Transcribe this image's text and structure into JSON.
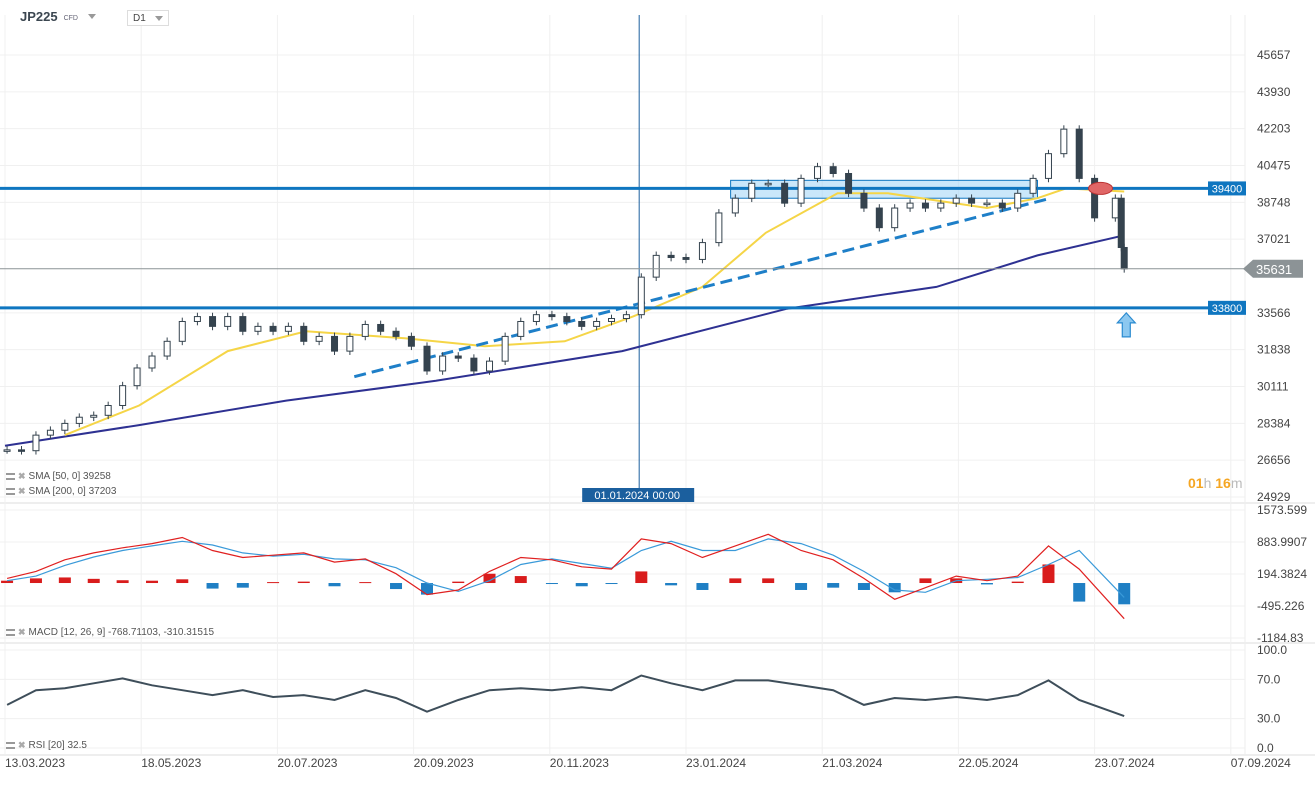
{
  "header": {
    "symbol": "JP225",
    "instrument_type": "CFD",
    "timeframe": "D1"
  },
  "legends": {
    "sma50": "SMA [50, 0] 39258",
    "sma200": "SMA [200, 0] 37203",
    "macd": "MACD [12, 26, 9] -768.71103, -310.31515",
    "rsi": "RSI [20] 32.5"
  },
  "countdown": {
    "hours": "01",
    "h_unit": "h",
    "minutes": "16",
    "m_unit": "m"
  },
  "crosshair_label": "01.01.2024 00:00",
  "colors": {
    "sma50": "#f5d547",
    "sma200": "#2e3192",
    "levels": "#0f76c0",
    "trendline": "#1e7fc8",
    "zone": "#9fd3f5",
    "macd": "#e02020",
    "signal": "#3a9ad9",
    "hist_pos": "#d91c1c",
    "hist_neg": "#1f7fc4",
    "rsi": "#3e4e5a",
    "candle": "#35434e",
    "price_tag": "#8c9396",
    "countdown": "#f5a623"
  },
  "chart_data": [
    {
      "type": "candlestick",
      "price_axis_ticks": [
        45657,
        43930,
        42203,
        40475,
        38748,
        37021,
        33566,
        31838,
        30111,
        28384,
        26656,
        24929
      ],
      "ylim": [
        24929,
        45657
      ],
      "x_ticks": [
        "13.03.2023",
        "18.05.2023",
        "20.07.2023",
        "20.09.2023",
        "20.11.2023",
        "23.01.2024",
        "21.03.2024",
        "22.05.2024",
        "23.07.2024",
        "07.09.2024"
      ],
      "last_price": 35631,
      "levels": [
        {
          "value": 39400,
          "label": "39400"
        },
        {
          "value": 33800,
          "label": "33800"
        }
      ],
      "crosshair_date": "2024-01-01",
      "zone": {
        "from": "2024-02-11",
        "to": "2024-06-27",
        "low": 38940,
        "high": 39780
      },
      "trendline": [
        [
          "2023-08-24",
          30570
        ],
        [
          "2024-07-03",
          38940
        ]
      ],
      "marker_ellipse": [
        "2024-07-25",
        39400
      ],
      "marker_arrow_up": [
        "2024-07-31",
        33000
      ],
      "closes": [
        [
          "2023-03-14",
          27140
        ],
        [
          "2023-03-21",
          27100
        ],
        [
          "2023-03-28",
          27830
        ],
        [
          "2023-04-04",
          28060
        ],
        [
          "2023-04-11",
          28380
        ],
        [
          "2023-04-18",
          28670
        ],
        [
          "2023-04-25",
          28760
        ],
        [
          "2023-05-02",
          29220
        ],
        [
          "2023-05-09",
          30150
        ],
        [
          "2023-05-16",
          30980
        ],
        [
          "2023-05-23",
          31540
        ],
        [
          "2023-05-30",
          32230
        ],
        [
          "2023-06-06",
          33160
        ],
        [
          "2023-06-13",
          33390
        ],
        [
          "2023-06-20",
          32930
        ],
        [
          "2023-06-27",
          33390
        ],
        [
          "2023-07-04",
          32700
        ],
        [
          "2023-07-11",
          32930
        ],
        [
          "2023-07-18",
          32700
        ],
        [
          "2023-07-25",
          32930
        ],
        [
          "2023-08-01",
          32230
        ],
        [
          "2023-08-08",
          32460
        ],
        [
          "2023-08-15",
          31770
        ],
        [
          "2023-08-22",
          32460
        ],
        [
          "2023-08-29",
          33020
        ],
        [
          "2023-09-05",
          32700
        ],
        [
          "2023-09-12",
          32460
        ],
        [
          "2023-09-19",
          32000
        ],
        [
          "2023-09-26",
          30840
        ],
        [
          "2023-10-03",
          31540
        ],
        [
          "2023-10-10",
          31440
        ],
        [
          "2023-10-17",
          30840
        ],
        [
          "2023-10-24",
          31300
        ],
        [
          "2023-10-31",
          32460
        ],
        [
          "2023-11-07",
          33160
        ],
        [
          "2023-11-14",
          33480
        ],
        [
          "2023-11-21",
          33390
        ],
        [
          "2023-11-28",
          33160
        ],
        [
          "2023-12-05",
          32930
        ],
        [
          "2023-12-12",
          33160
        ],
        [
          "2023-12-19",
          33300
        ],
        [
          "2023-12-26",
          33480
        ],
        [
          "2024-01-02",
          35240
        ],
        [
          "2024-01-09",
          36260
        ],
        [
          "2024-01-16",
          36160
        ],
        [
          "2024-01-23",
          36070
        ],
        [
          "2024-01-30",
          36860
        ],
        [
          "2024-02-06",
          38250
        ],
        [
          "2024-02-13",
          38940
        ],
        [
          "2024-02-20",
          39640
        ],
        [
          "2024-02-27",
          39640
        ],
        [
          "2024-03-05",
          38710
        ],
        [
          "2024-03-12",
          39870
        ],
        [
          "2024-03-19",
          40420
        ],
        [
          "2024-03-26",
          40100
        ],
        [
          "2024-04-02",
          39170
        ],
        [
          "2024-04-09",
          38480
        ],
        [
          "2024-04-16",
          37560
        ],
        [
          "2024-04-23",
          38480
        ],
        [
          "2024-04-30",
          38710
        ],
        [
          "2024-05-07",
          38480
        ],
        [
          "2024-05-14",
          38710
        ],
        [
          "2024-05-21",
          38940
        ],
        [
          "2024-05-28",
          38710
        ],
        [
          "2024-06-04",
          38710
        ],
        [
          "2024-06-11",
          38480
        ],
        [
          "2024-06-18",
          39170
        ],
        [
          "2024-06-25",
          39870
        ],
        [
          "2024-07-02",
          41030
        ],
        [
          "2024-07-09",
          42180
        ],
        [
          "2024-07-16",
          39870
        ],
        [
          "2024-07-23",
          38020
        ],
        [
          "2024-07-30",
          38940
        ],
        [
          "2024-08-01",
          36630
        ],
        [
          "2024-08-02",
          35631
        ]
      ],
      "sma50": [
        [
          "2023-04-11",
          27830
        ],
        [
          "2023-05-17",
          29220
        ],
        [
          "2023-06-27",
          31770
        ],
        [
          "2023-08-02",
          32700
        ],
        [
          "2023-09-16",
          32370
        ],
        [
          "2023-10-22",
          32000
        ],
        [
          "2023-11-27",
          32230
        ],
        [
          "2023-12-29",
          33390
        ],
        [
          "2024-01-30",
          34780
        ],
        [
          "2024-02-26",
          37320
        ],
        [
          "2024-03-28",
          39170
        ],
        [
          "2024-04-20",
          39170
        ],
        [
          "2024-06-04",
          38480
        ],
        [
          "2024-06-27",
          38940
        ],
        [
          "2024-07-10",
          39400
        ],
        [
          "2024-08-02",
          39258
        ]
      ],
      "sma200": [
        [
          "2023-03-13",
          27330
        ],
        [
          "2023-05-17",
          28300
        ],
        [
          "2023-07-24",
          29450
        ],
        [
          "2023-09-30",
          30380
        ],
        [
          "2023-12-24",
          31770
        ],
        [
          "2024-03-06",
          33760
        ],
        [
          "2024-05-12",
          34780
        ],
        [
          "2024-06-27",
          36260
        ],
        [
          "2024-08-02",
          37203
        ]
      ]
    },
    {
      "type": "macd",
      "axis_ticks": [
        1573.599,
        883.9907,
        194.3824,
        -495.226,
        -1184.83
      ],
      "ylim": [
        -1184.83,
        1573.599
      ],
      "dates": [
        "2023-03-14",
        "2023-03-28",
        "2023-04-11",
        "2023-04-25",
        "2023-05-09",
        "2023-05-23",
        "2023-06-06",
        "2023-06-20",
        "2023-07-04",
        "2023-07-18",
        "2023-08-01",
        "2023-08-15",
        "2023-08-29",
        "2023-09-12",
        "2023-09-26",
        "2023-10-10",
        "2023-10-24",
        "2023-11-07",
        "2023-11-21",
        "2023-12-05",
        "2023-12-19",
        "2024-01-02",
        "2024-01-16",
        "2024-01-30",
        "2024-02-13",
        "2024-02-27",
        "2024-03-12",
        "2024-03-26",
        "2024-04-09",
        "2024-04-23",
        "2024-05-07",
        "2024-05-21",
        "2024-06-04",
        "2024-06-18",
        "2024-07-02",
        "2024-07-16",
        "2024-08-02"
      ],
      "macd": [
        100,
        250,
        500,
        650,
        760,
        850,
        980,
        700,
        550,
        600,
        650,
        450,
        520,
        200,
        -250,
        -150,
        250,
        550,
        500,
        350,
        300,
        950,
        850,
        550,
        800,
        1050,
        700,
        500,
        100,
        -350,
        -100,
        150,
        50,
        150,
        800,
        300,
        -769
      ],
      "signal": [
        50,
        150,
        380,
        560,
        700,
        800,
        900,
        820,
        650,
        580,
        620,
        520,
        500,
        330,
        0,
        -180,
        50,
        400,
        520,
        420,
        320,
        700,
        900,
        700,
        700,
        950,
        850,
        600,
        250,
        -150,
        -200,
        50,
        80,
        120,
        400,
        700,
        -310
      ]
    },
    {
      "type": "line",
      "name": "RSI",
      "axis_ticks": [
        100.0,
        70.0,
        30.0,
        0.0
      ],
      "ylim": [
        0,
        100
      ],
      "dates": [
        "2023-03-14",
        "2023-03-28",
        "2023-04-11",
        "2023-04-25",
        "2023-05-09",
        "2023-05-23",
        "2023-06-06",
        "2023-06-20",
        "2023-07-04",
        "2023-07-18",
        "2023-08-01",
        "2023-08-15",
        "2023-08-29",
        "2023-09-12",
        "2023-09-26",
        "2023-10-10",
        "2023-10-24",
        "2023-11-07",
        "2023-11-21",
        "2023-12-05",
        "2023-12-19",
        "2024-01-02",
        "2024-01-16",
        "2024-01-30",
        "2024-02-13",
        "2024-02-27",
        "2024-03-12",
        "2024-03-26",
        "2024-04-09",
        "2024-04-23",
        "2024-05-07",
        "2024-05-21",
        "2024-06-04",
        "2024-06-18",
        "2024-07-02",
        "2024-07-16",
        "2024-08-02"
      ],
      "values": [
        44,
        59,
        61,
        66,
        71,
        64,
        59,
        54,
        59,
        52,
        54,
        49,
        59,
        51,
        37,
        49,
        59,
        61,
        59,
        62,
        59,
        74,
        66,
        59,
        69,
        69,
        64,
        59,
        44,
        51,
        49,
        52,
        49,
        54,
        69,
        49,
        32.5
      ]
    }
  ]
}
